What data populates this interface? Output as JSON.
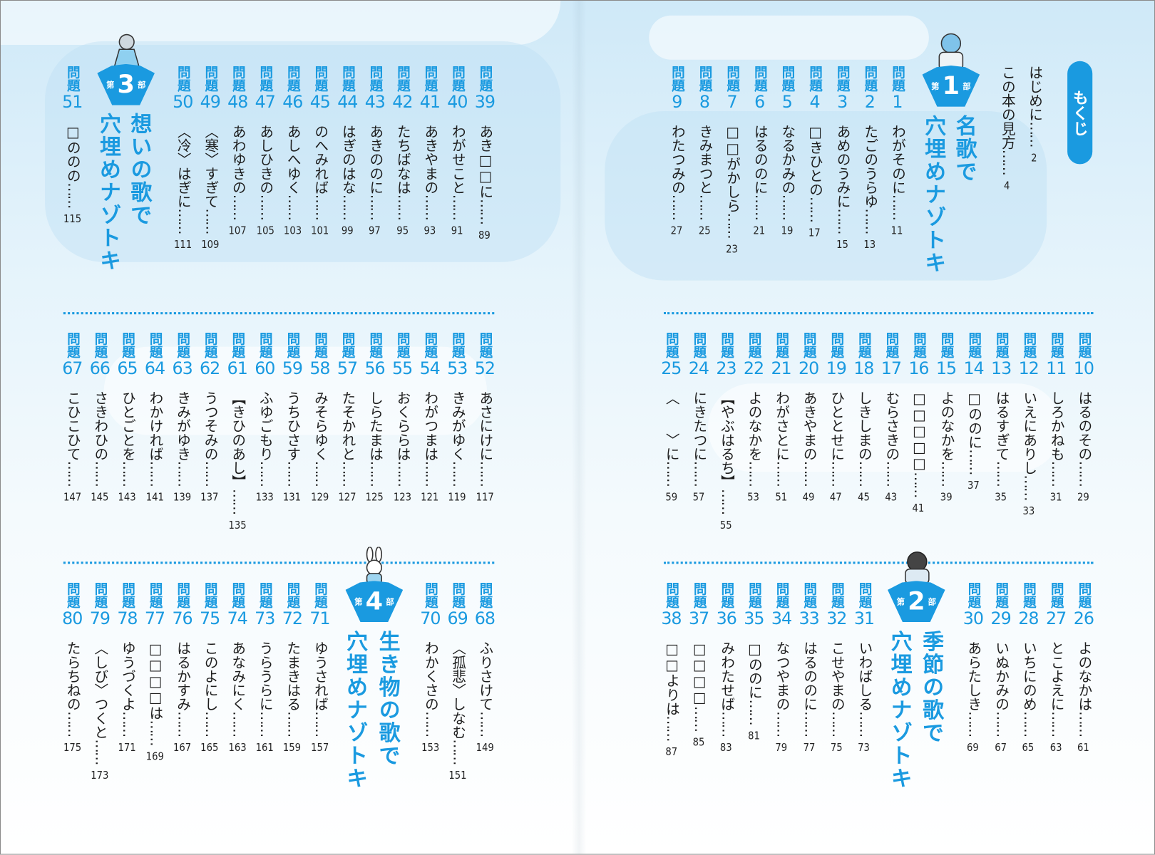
{
  "heading": "もくじ",
  "problem_label": "問題",
  "leader": "……",
  "intro": [
    {
      "label": "はじめに",
      "page": "2"
    },
    {
      "label": "この本の見方",
      "page": "4"
    }
  ],
  "parts": [
    {
      "prefix": "第",
      "number": "1",
      "suffix": "部",
      "title": [
        "名歌で",
        "穴埋めナゾトキ"
      ]
    },
    {
      "prefix": "第",
      "number": "2",
      "suffix": "部",
      "title": [
        "季節の歌で",
        "穴埋めナゾトキ"
      ]
    },
    {
      "prefix": "第",
      "number": "3",
      "suffix": "部",
      "title": [
        "想いの歌で",
        "穴埋めナゾトキ"
      ]
    },
    {
      "prefix": "第",
      "number": "4",
      "suffix": "部",
      "title": [
        "生き物の歌で",
        "穴埋めナゾトキ"
      ]
    }
  ],
  "groups": [
    [
      {
        "num": "1",
        "title": "わがそのに",
        "page": "11"
      },
      {
        "num": "2",
        "title": "たごのうらゆ",
        "page": "13"
      },
      {
        "num": "3",
        "title": "あめのうみに",
        "page": "15"
      },
      {
        "num": "4",
        "title": "□きひとの",
        "page": "17"
      },
      {
        "num": "5",
        "title": "なるかみの",
        "page": "19"
      },
      {
        "num": "6",
        "title": "はるののに",
        "page": "21"
      },
      {
        "num": "7",
        "title": "□□がかしら",
        "page": "23"
      },
      {
        "num": "8",
        "title": "きみまつと",
        "page": "25"
      },
      {
        "num": "9",
        "title": "わたつみの",
        "page": "27"
      }
    ],
    [
      {
        "num": "10",
        "title": "はるのその",
        "page": "29"
      },
      {
        "num": "11",
        "title": "しろかねも",
        "page": "31"
      },
      {
        "num": "12",
        "title": "いえにありし",
        "page": "33"
      },
      {
        "num": "13",
        "title": "はるすぎて",
        "page": "35"
      },
      {
        "num": "14",
        "title": "□ののに",
        "page": "37"
      },
      {
        "num": "15",
        "title": "よのなかを",
        "page": "39"
      },
      {
        "num": "16",
        "title": "□□□□□",
        "page": "41"
      },
      {
        "num": "17",
        "title": "むらさきの",
        "page": "43"
      },
      {
        "num": "18",
        "title": "しきしまの",
        "page": "45"
      },
      {
        "num": "19",
        "title": "ひととせに",
        "page": "47"
      },
      {
        "num": "20",
        "title": "あきやまの",
        "page": "49"
      },
      {
        "num": "21",
        "title": "わがさとに",
        "page": "51"
      },
      {
        "num": "22",
        "title": "よのなかを",
        "page": "53"
      },
      {
        "num": "23",
        "title": "【やぶはるち】",
        "page": "55"
      },
      {
        "num": "24",
        "title": "にきたつに",
        "page": "57"
      },
      {
        "num": "25",
        "title": "〈　　〉に",
        "page": "59"
      }
    ],
    [
      {
        "num": "26",
        "title": "よのなかは",
        "page": "61"
      },
      {
        "num": "27",
        "title": "とこよえに",
        "page": "63"
      },
      {
        "num": "28",
        "title": "いちにのめ",
        "page": "65"
      },
      {
        "num": "29",
        "title": "いぬかみの",
        "page": "67"
      },
      {
        "num": "30",
        "title": "あらたしき",
        "page": "69"
      }
    ],
    [
      {
        "num": "31",
        "title": "いわばしる",
        "page": "73"
      },
      {
        "num": "32",
        "title": "こせやまの",
        "page": "75"
      },
      {
        "num": "33",
        "title": "はるののに",
        "page": "77"
      },
      {
        "num": "34",
        "title": "なつやまの",
        "page": "79"
      },
      {
        "num": "35",
        "title": "□ののに",
        "page": "81"
      },
      {
        "num": "36",
        "title": "みわたせば",
        "page": "83"
      },
      {
        "num": "37",
        "title": "□□□□",
        "page": "85"
      },
      {
        "num": "38",
        "title": "□□よりは",
        "page": "87"
      }
    ],
    [
      {
        "num": "39",
        "title": "あき□□に",
        "page": "89"
      },
      {
        "num": "40",
        "title": "わがせこと",
        "page": "91"
      },
      {
        "num": "41",
        "title": "あきやまの",
        "page": "93"
      },
      {
        "num": "42",
        "title": "たちばなは",
        "page": "95"
      },
      {
        "num": "43",
        "title": "あきののに",
        "page": "97"
      },
      {
        "num": "44",
        "title": "はぎのはな",
        "page": "99"
      },
      {
        "num": "45",
        "title": "のへみれば",
        "page": "101"
      },
      {
        "num": "46",
        "title": "あしへゆく",
        "page": "103"
      },
      {
        "num": "47",
        "title": "あしひきの",
        "page": "105"
      },
      {
        "num": "48",
        "title": "あわゆきの",
        "page": "107"
      },
      {
        "num": "49",
        "title": "〈寒〉すぎて",
        "page": "109"
      },
      {
        "num": "50",
        "title": "〈冷〉はぎに",
        "page": "111"
      }
    ],
    [
      {
        "num": "51",
        "title": "□ののの",
        "page": "115"
      }
    ],
    [
      {
        "num": "52",
        "title": "あさにけに",
        "page": "117"
      },
      {
        "num": "53",
        "title": "きみがゆく",
        "page": "119"
      },
      {
        "num": "54",
        "title": "わがつまは",
        "page": "121"
      },
      {
        "num": "55",
        "title": "おくららは",
        "page": "123"
      },
      {
        "num": "56",
        "title": "しらたまは",
        "page": "125"
      },
      {
        "num": "57",
        "title": "たそかれと",
        "page": "127"
      },
      {
        "num": "58",
        "title": "みそらゆく",
        "page": "129"
      },
      {
        "num": "59",
        "title": "うちひさす",
        "page": "131"
      },
      {
        "num": "60",
        "title": "ふゆごもり",
        "page": "133"
      },
      {
        "num": "61",
        "title": "【きひのあし】",
        "page": "135"
      },
      {
        "num": "62",
        "title": "うつそみの",
        "page": "137"
      },
      {
        "num": "63",
        "title": "きみがゆき",
        "page": "139"
      },
      {
        "num": "64",
        "title": "わかければ",
        "page": "141"
      },
      {
        "num": "65",
        "title": "ひとごとを",
        "page": "143"
      },
      {
        "num": "66",
        "title": "さきわひの",
        "page": "145"
      },
      {
        "num": "67",
        "title": "こひこひて",
        "page": "147"
      }
    ],
    [
      {
        "num": "68",
        "title": "ふりさけて",
        "page": "149"
      },
      {
        "num": "69",
        "title": "〈孤悲〉しなむ",
        "page": "151"
      },
      {
        "num": "70",
        "title": "わかくさの",
        "page": "153"
      }
    ],
    [
      {
        "num": "71",
        "title": "ゆうされば",
        "page": "157"
      },
      {
        "num": "72",
        "title": "たまきはる",
        "page": "159"
      },
      {
        "num": "73",
        "title": "うらうらに",
        "page": "161"
      },
      {
        "num": "74",
        "title": "あなみにく",
        "page": "163"
      },
      {
        "num": "75",
        "title": "このよにし",
        "page": "165"
      },
      {
        "num": "76",
        "title": "はるかすみ",
        "page": "167"
      },
      {
        "num": "77",
        "title": "□□□□は",
        "page": "169"
      },
      {
        "num": "78",
        "title": "ゆうづくよ",
        "page": "171"
      },
      {
        "num": "79",
        "title": "〈しび〉つくと",
        "page": "173"
      },
      {
        "num": "80",
        "title": "たらちねの",
        "page": "175"
      }
    ]
  ]
}
